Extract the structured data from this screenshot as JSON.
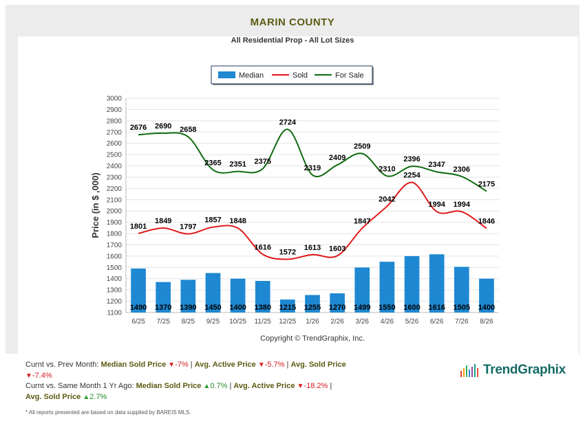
{
  "header": {
    "title": "MARIN COUNTY",
    "subtitle": "All Residential Prop - All Lot Sizes"
  },
  "colors": {
    "bar": "#1e88d2",
    "sold": "#e01818",
    "for_sale": "#0e6b0e",
    "title": "#5c5a13"
  },
  "chart_data": {
    "type": "bar",
    "categories": [
      "6/25",
      "7/25",
      "8/25",
      "9/25",
      "10/25",
      "11/25",
      "12/25",
      "1/26",
      "2/26",
      "3/26",
      "4/26",
      "5/26",
      "6/26",
      "7/26",
      "8/26"
    ],
    "series": [
      {
        "name": "Median",
        "type": "bar",
        "values": [
          1490,
          1370,
          1390,
          1450,
          1400,
          1380,
          1215,
          1255,
          1270,
          1499,
          1550,
          1600,
          1616,
          1505,
          1400
        ]
      },
      {
        "name": "Sold",
        "type": "line",
        "values": [
          1801,
          1849,
          1797,
          1857,
          1848,
          1616,
          1572,
          1613,
          1603,
          1847,
          2042,
          2254,
          1994,
          1994,
          1846
        ]
      },
      {
        "name": "For Sale",
        "type": "line",
        "values": [
          2676,
          2690,
          2658,
          2365,
          2351,
          2375,
          2724,
          2319,
          2409,
          2509,
          2310,
          2396,
          2347,
          2306,
          2175
        ]
      }
    ],
    "ylabel": "Price (in $ ,000)",
    "ylim": [
      1100,
      3000
    ],
    "yticks": [
      1100,
      1200,
      1300,
      1400,
      1500,
      1600,
      1700,
      1800,
      1900,
      2000,
      2100,
      2200,
      2300,
      2400,
      2500,
      2600,
      2700,
      2800,
      2900,
      3000
    ],
    "grid": true,
    "legend_position": "top-center",
    "copyright": "Copyright © TrendGraphix, Inc."
  },
  "summary": {
    "prev_label": "Curnt vs. Prev Month:",
    "median_label": "Median Sold Price",
    "active_label": "Avg. Active Price",
    "sold_label": "Avg. Sold Price",
    "prev_median": "-7%",
    "prev_active": "-5.7%",
    "prev_sold": "-7.4%",
    "year_label": "Curnt vs. Same Month 1 Yr Ago:",
    "year_median": "0.7%",
    "year_active": "-18.2%",
    "year_sold": "2.7%",
    "sep": "|",
    "tri_down": "▼",
    "tri_up": "▲"
  },
  "footnote": "* All reports presented are based on data supplied by BAREIS MLS.",
  "brand": {
    "name": "TrendGraphix"
  }
}
